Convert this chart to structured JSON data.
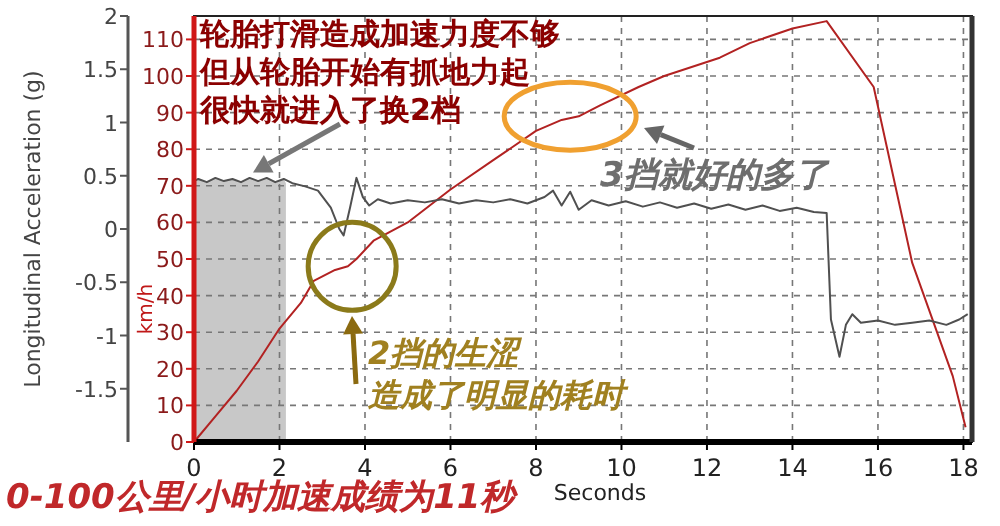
{
  "chart_data": {
    "type": "line",
    "xlabel": "Seconds",
    "ylabel": "km/h",
    "y2label": "Longitudinal Acceleration (g)",
    "xlim": [
      0,
      18.2
    ],
    "xticks": [
      0,
      2,
      4,
      6,
      8,
      10,
      12,
      14,
      16,
      18
    ],
    "ylim": [
      0,
      116.4
    ],
    "yticks": [
      0,
      10,
      20,
      30,
      40,
      50,
      60,
      70,
      80,
      90,
      100,
      110
    ],
    "y2lim": [
      -2,
      2
    ],
    "y2ticks": [
      -1.5,
      -1,
      -0.5,
      0,
      0.5,
      1,
      1.5,
      2
    ],
    "grid": true,
    "series": [
      {
        "color": "#b22222",
        "x": [
          0,
          0.5,
          1,
          1.5,
          2,
          2.5,
          2.8,
          3.3,
          3.6,
          3.8,
          4.2,
          5,
          6,
          7,
          8,
          8.6,
          9,
          9.5,
          10.4,
          11,
          12.3,
          13,
          14,
          14.8,
          15.9,
          16.8,
          17.75,
          18.05
        ],
        "values": [
          0,
          7,
          14,
          22,
          31,
          38,
          44,
          47,
          48,
          50,
          55,
          60,
          69,
          77,
          85,
          88,
          89,
          92,
          97,
          100,
          105,
          109,
          113,
          115,
          97,
          49,
          18,
          4
        ]
      },
      {
        "color": "#505050",
        "axis": "y2",
        "x": [
          0,
          0.1,
          0.3,
          0.5,
          0.7,
          0.9,
          1.1,
          1.3,
          1.5,
          1.7,
          1.9,
          2.1,
          2.3,
          2.6,
          2.9,
          3.2,
          3.4,
          3.5,
          3.65,
          3.8,
          3.95,
          4.1,
          4.3,
          4.6,
          5,
          5.4,
          5.8,
          6.2,
          6.6,
          7,
          7.4,
          7.8,
          8.2,
          8.4,
          8.6,
          8.8,
          9,
          9.3,
          9.7,
          10.1,
          10.5,
          10.9,
          11.3,
          11.7,
          12.1,
          12.5,
          12.9,
          13.3,
          13.7,
          14.1,
          14.5,
          14.8,
          14.9,
          15.1,
          15.25,
          15.4,
          15.6,
          16,
          16.4,
          16.8,
          17.2,
          17.6,
          17.9,
          18.1
        ],
        "values": [
          0.45,
          0.47,
          0.44,
          0.48,
          0.45,
          0.47,
          0.44,
          0.48,
          0.45,
          0.48,
          0.44,
          0.47,
          0.43,
          0.4,
          0.36,
          0.2,
          0.0,
          -0.06,
          0.2,
          0.48,
          0.3,
          0.22,
          0.28,
          0.24,
          0.27,
          0.25,
          0.28,
          0.24,
          0.27,
          0.25,
          0.28,
          0.24,
          0.3,
          0.36,
          0.22,
          0.35,
          0.18,
          0.27,
          0.22,
          0.26,
          0.21,
          0.25,
          0.2,
          0.24,
          0.19,
          0.23,
          0.18,
          0.22,
          0.17,
          0.2,
          0.16,
          0.15,
          -0.85,
          -1.2,
          -0.9,
          -0.8,
          -0.88,
          -0.86,
          -0.9,
          -0.88,
          -0.86,
          -0.9,
          -0.85,
          -0.8
        ]
      }
    ],
    "bands": [
      {
        "axis": "x",
        "from": 0,
        "to": 2.15,
        "color": "#c8c8c8"
      }
    ],
    "annotations": [
      "轮胎打滑造成加速力度不够",
      "但从轮胎开始有抓地力起",
      {
        "text": "很快就进入了换2档",
        "x": 1.1,
        "y": 72
      },
      {
        "text": "3挡就好的多了",
        "x": 8.8,
        "y": 89
      },
      {
        "text": "2挡的生涩",
        "x": 3.7,
        "y": 48
      },
      "造成了明显的耗时",
      "0-100公里/小时加速成绩为11秒"
    ]
  }
}
